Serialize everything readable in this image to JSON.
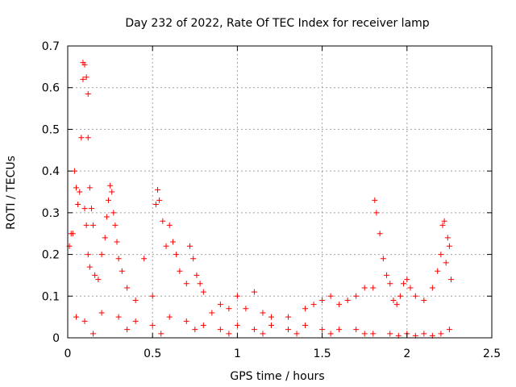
{
  "chart_data": {
    "type": "scatter",
    "title": "Day 232 of 2022, Rate Of TEC Index for receiver lamp",
    "xlabel": "GPS time / hours",
    "ylabel": "ROTI / TECUs",
    "xlim": [
      0,
      2.5
    ],
    "ylim": [
      0,
      0.7
    ],
    "xticks": [
      "0",
      "0.5",
      "1",
      "1.5",
      "2",
      "2.5"
    ],
    "yticks": [
      "0",
      "0.1",
      "0.2",
      "0.3",
      "0.4",
      "0.5",
      "0.6",
      "0.7"
    ],
    "grid": true,
    "marker": "+",
    "marker_color": "#ff0000",
    "series": [
      {
        "points": [
          [
            0.01,
            0.22
          ],
          [
            0.02,
            0.25
          ],
          [
            0.03,
            0.25
          ],
          [
            0.04,
            0.4
          ],
          [
            0.05,
            0.36
          ],
          [
            0.06,
            0.32
          ],
          [
            0.07,
            0.35
          ],
          [
            0.08,
            0.48
          ],
          [
            0.09,
            0.62
          ],
          [
            0.09,
            0.66
          ],
          [
            0.1,
            0.655
          ],
          [
            0.11,
            0.625
          ],
          [
            0.12,
            0.585
          ],
          [
            0.12,
            0.48
          ],
          [
            0.13,
            0.36
          ],
          [
            0.1,
            0.31
          ],
          [
            0.11,
            0.27
          ],
          [
            0.12,
            0.2
          ],
          [
            0.13,
            0.17
          ],
          [
            0.14,
            0.31
          ],
          [
            0.15,
            0.27
          ],
          [
            0.16,
            0.15
          ],
          [
            0.18,
            0.14
          ],
          [
            0.2,
            0.2
          ],
          [
            0.22,
            0.24
          ],
          [
            0.23,
            0.29
          ],
          [
            0.24,
            0.33
          ],
          [
            0.25,
            0.365
          ],
          [
            0.26,
            0.35
          ],
          [
            0.27,
            0.3
          ],
          [
            0.28,
            0.27
          ],
          [
            0.29,
            0.23
          ],
          [
            0.3,
            0.19
          ],
          [
            0.32,
            0.16
          ],
          [
            0.35,
            0.12
          ],
          [
            0.4,
            0.09
          ],
          [
            0.45,
            0.19
          ],
          [
            0.5,
            0.1
          ],
          [
            0.52,
            0.32
          ],
          [
            0.53,
            0.355
          ],
          [
            0.54,
            0.33
          ],
          [
            0.56,
            0.28
          ],
          [
            0.58,
            0.22
          ],
          [
            0.6,
            0.27
          ],
          [
            0.62,
            0.23
          ],
          [
            0.64,
            0.2
          ],
          [
            0.66,
            0.16
          ],
          [
            0.7,
            0.13
          ],
          [
            0.72,
            0.22
          ],
          [
            0.74,
            0.19
          ],
          [
            0.76,
            0.15
          ],
          [
            0.78,
            0.13
          ],
          [
            0.8,
            0.11
          ],
          [
            0.85,
            0.06
          ],
          [
            0.9,
            0.08
          ],
          [
            0.95,
            0.07
          ],
          [
            1.0,
            0.1
          ],
          [
            1.05,
            0.07
          ],
          [
            1.1,
            0.11
          ],
          [
            1.15,
            0.06
          ],
          [
            1.2,
            0.05
          ],
          [
            1.3,
            0.05
          ],
          [
            1.4,
            0.07
          ],
          [
            1.45,
            0.08
          ],
          [
            1.5,
            0.09
          ],
          [
            1.55,
            0.1
          ],
          [
            1.6,
            0.08
          ],
          [
            1.65,
            0.09
          ],
          [
            1.7,
            0.1
          ],
          [
            1.75,
            0.12
          ],
          [
            1.8,
            0.12
          ],
          [
            1.81,
            0.33
          ],
          [
            1.82,
            0.3
          ],
          [
            1.84,
            0.25
          ],
          [
            1.86,
            0.19
          ],
          [
            1.88,
            0.15
          ],
          [
            1.9,
            0.13
          ],
          [
            1.92,
            0.09
          ],
          [
            1.94,
            0.08
          ],
          [
            1.96,
            0.1
          ],
          [
            1.98,
            0.13
          ],
          [
            2.0,
            0.14
          ],
          [
            2.02,
            0.12
          ],
          [
            2.05,
            0.1
          ],
          [
            2.1,
            0.09
          ],
          [
            2.15,
            0.12
          ],
          [
            2.18,
            0.16
          ],
          [
            2.2,
            0.2
          ],
          [
            2.21,
            0.27
          ],
          [
            2.22,
            0.28
          ],
          [
            2.23,
            0.18
          ],
          [
            2.24,
            0.24
          ],
          [
            2.25,
            0.22
          ],
          [
            2.26,
            0.14
          ],
          [
            0.05,
            0.05
          ],
          [
            0.1,
            0.04
          ],
          [
            0.2,
            0.06
          ],
          [
            0.3,
            0.05
          ],
          [
            0.4,
            0.04
          ],
          [
            0.5,
            0.03
          ],
          [
            0.6,
            0.05
          ],
          [
            0.7,
            0.04
          ],
          [
            0.8,
            0.03
          ],
          [
            0.9,
            0.02
          ],
          [
            1.0,
            0.03
          ],
          [
            1.1,
            0.02
          ],
          [
            1.2,
            0.03
          ],
          [
            1.3,
            0.02
          ],
          [
            1.4,
            0.03
          ],
          [
            1.5,
            0.02
          ],
          [
            1.6,
            0.02
          ],
          [
            1.7,
            0.02
          ],
          [
            1.8,
            0.01
          ],
          [
            1.9,
            0.01
          ],
          [
            2.0,
            0.01
          ],
          [
            2.1,
            0.01
          ],
          [
            2.2,
            0.01
          ],
          [
            2.25,
            0.02
          ],
          [
            0.15,
            0.01
          ],
          [
            0.35,
            0.02
          ],
          [
            0.55,
            0.01
          ],
          [
            0.75,
            0.02
          ],
          [
            0.95,
            0.01
          ],
          [
            1.15,
            0.01
          ],
          [
            1.35,
            0.01
          ],
          [
            1.55,
            0.01
          ],
          [
            1.75,
            0.01
          ],
          [
            1.95,
            0.005
          ],
          [
            2.05,
            0.005
          ],
          [
            2.15,
            0.005
          ]
        ]
      }
    ]
  }
}
